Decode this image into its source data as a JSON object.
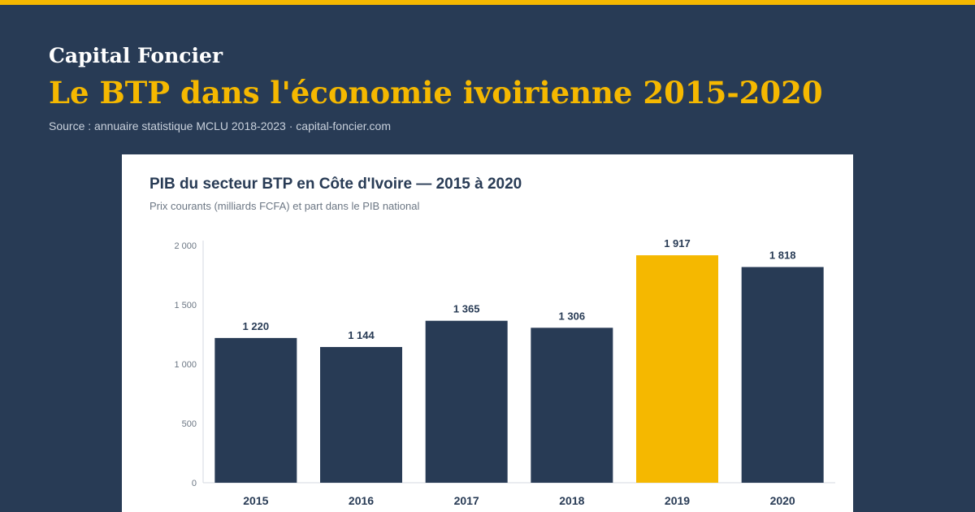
{
  "header": {
    "brand": "Capital Foncier",
    "headline": "Le BTP dans l'économie ivoirienne 2015-2020",
    "source": "Source : annuaire statistique MCLU 2018-2023 · capital-foncier.com"
  },
  "colors": {
    "background": "#283b55",
    "accent": "#f5b800",
    "bar": "#283b55",
    "highlight_bar": "#f5b800"
  },
  "chart_data": {
    "type": "bar",
    "title": "PIB du secteur BTP en Côte d'Ivoire — 2015 à 2020",
    "subtitle": "Prix courants (milliards FCFA) et part dans le PIB national",
    "categories": [
      "2015",
      "2016",
      "2017",
      "2018",
      "2019",
      "2020"
    ],
    "values": [
      1220,
      1144,
      1365,
      1306,
      1917,
      1818
    ],
    "value_labels": [
      "1 220",
      "1 144",
      "1 365",
      "1 306",
      "1 917",
      "1 818"
    ],
    "highlight_category": "2019",
    "ylim": [
      0,
      2000
    ],
    "yticks": [
      0,
      500,
      1000,
      1500,
      2000
    ],
    "ytick_labels": [
      "0",
      "500",
      "1 000",
      "1 500",
      "2 000"
    ],
    "grid": false,
    "legend": "none"
  }
}
